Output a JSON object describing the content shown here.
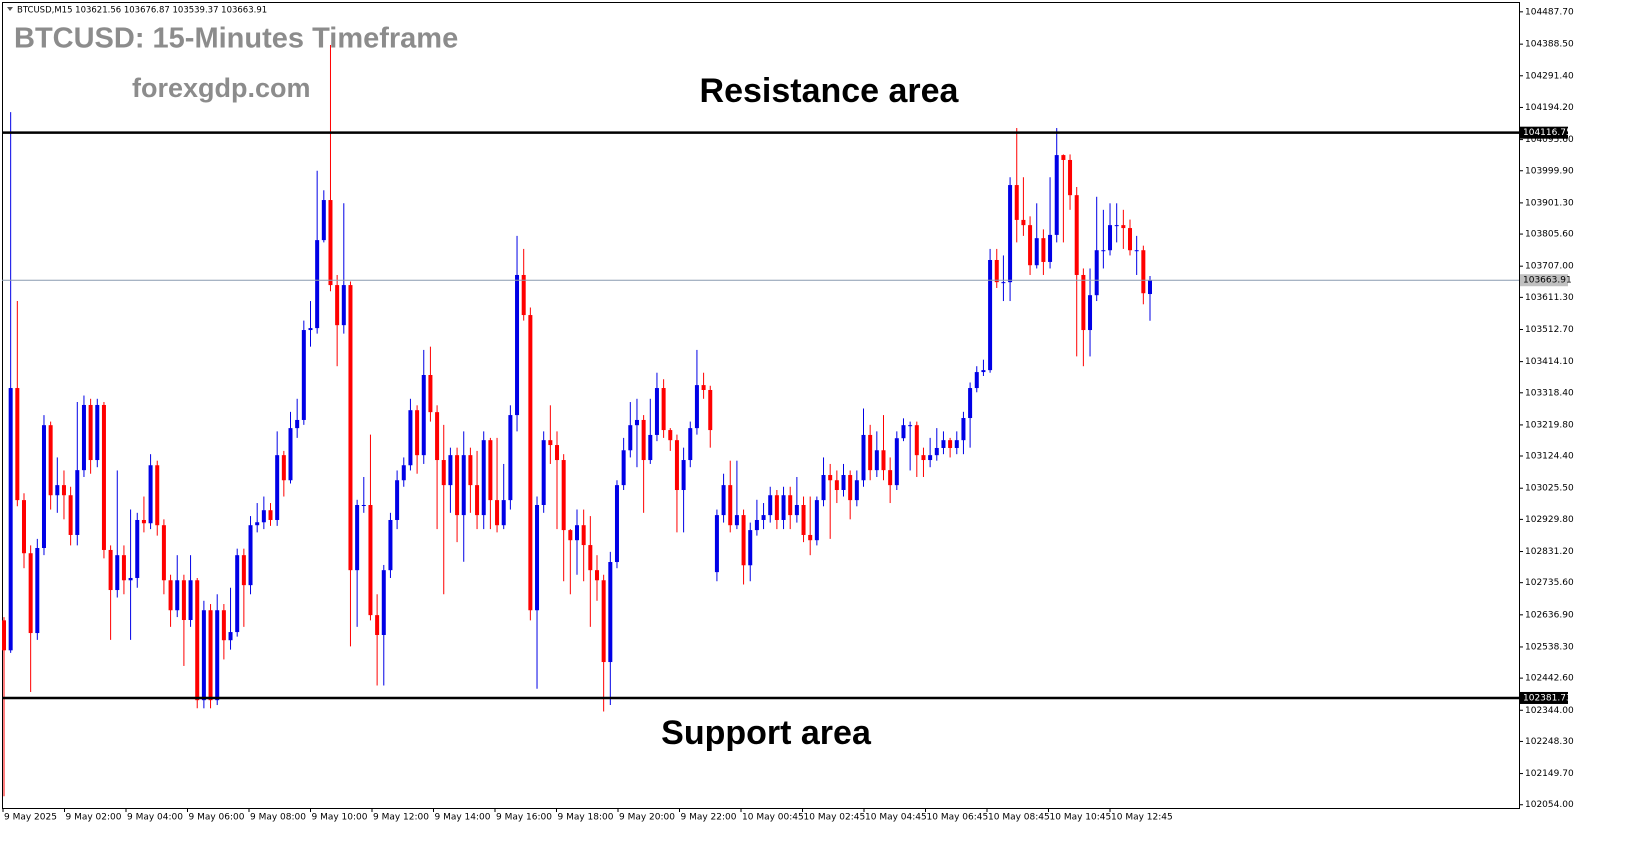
{
  "chart_data": {
    "type": "candlestick",
    "header": "BTCUSD,M15  103621.56 103676.87 103539.37 103663.91",
    "title": "BTCUSD: 15-Minutes Timeframe",
    "subtitle": "forexgdp.com",
    "up_color": "#0000e6",
    "down_color": "#ff0000",
    "ylim": [
      102044,
      104524
    ],
    "yticks": [
      {
        "value": 104487.7,
        "label": "104487.70"
      },
      {
        "value": 104388.5,
        "label": "104388.50"
      },
      {
        "value": 104291.4,
        "label": "104291.40"
      },
      {
        "value": 104194.2,
        "label": "104194.20"
      },
      {
        "value": 104095.6,
        "label": "104095.60"
      },
      {
        "value": 103999.9,
        "label": "103999.90"
      },
      {
        "value": 103901.3,
        "label": "103901.30"
      },
      {
        "value": 103805.6,
        "label": "103805.60"
      },
      {
        "value": 103707.0,
        "label": "103707.00"
      },
      {
        "value": 103611.3,
        "label": "103611.30"
      },
      {
        "value": 103512.7,
        "label": "103512.70"
      },
      {
        "value": 103414.1,
        "label": "103414.10"
      },
      {
        "value": 103318.4,
        "label": "103318.40"
      },
      {
        "value": 103219.8,
        "label": "103219.80"
      },
      {
        "value": 103124.4,
        "label": "103124.40"
      },
      {
        "value": 103025.5,
        "label": "103025.50"
      },
      {
        "value": 102929.8,
        "label": "102929.80"
      },
      {
        "value": 102831.2,
        "label": "102831.20"
      },
      {
        "value": 102735.6,
        "label": "102735.60"
      },
      {
        "value": 102636.9,
        "label": "102636.90"
      },
      {
        "value": 102538.3,
        "label": "102538.30"
      },
      {
        "value": 102442.6,
        "label": "102442.60"
      },
      {
        "value": 102344.0,
        "label": "102344.00"
      },
      {
        "value": 102248.3,
        "label": "102248.30"
      },
      {
        "value": 102149.7,
        "label": "102149.70"
      },
      {
        "value": 102054.0,
        "label": "102054.00"
      }
    ],
    "x_labels": [
      "9 May 2025",
      "9 May 02:00",
      "9 May 04:00",
      "9 May 06:00",
      "9 May 08:00",
      "9 May 10:00",
      "9 May 12:00",
      "9 May 14:00",
      "9 May 16:00",
      "9 May 18:00",
      "9 May 20:00",
      "9 May 22:00",
      "10 May 00:45",
      "10 May 02:45",
      "10 May 04:45",
      "10 May 06:45",
      "10 May 08:45",
      "10 May 10:45",
      "10 May 12:45"
    ],
    "resistance": {
      "name": "Resistance area",
      "value": 104116.75
    },
    "support": {
      "name": "Support area",
      "value": 102381.73
    },
    "last_price": 103663.91,
    "candles": {
      "open": [
        102620,
        102528,
        103333,
        102989,
        102826,
        102581,
        102842,
        103219,
        103004,
        103035,
        103004,
        102882,
        103081,
        103281,
        103112,
        103281,
        102836,
        102713,
        102820,
        102743,
        102750,
        102928,
        102918,
        103096,
        102912,
        102743,
        102651,
        102743,
        102621,
        102743,
        102375,
        102651,
        102375,
        102651,
        102559,
        102584,
        102820,
        102728,
        102912,
        102921,
        102958,
        102928,
        103127,
        103050,
        103210,
        103235,
        103511,
        103517,
        103787,
        103910,
        103649,
        103526,
        103649,
        102774,
        102974,
        102974,
        102636,
        102575,
        102774,
        102928,
        103050,
        103096,
        103265,
        103127,
        103373,
        103259,
        103112,
        103035,
        103127,
        102943,
        103127,
        103035,
        102943,
        103173,
        102989,
        102912,
        102989,
        103250,
        103680,
        103557,
        102651,
        102974,
        103173,
        103158,
        103112,
        102897,
        102866,
        102912,
        102851,
        102774,
        102743,
        102492,
        102799,
        103035,
        103142,
        103219,
        103235,
        103112,
        103189,
        103333,
        103204,
        103173,
        103020,
        103112,
        103210,
        103342,
        103327,
        102768,
        102943,
        103035,
        102912,
        102943,
        102789,
        102897,
        102928,
        102943,
        103004,
        102928,
        103004,
        102943,
        102974,
        102882,
        102866,
        102989,
        103066,
        103050,
        103020,
        103066,
        102989,
        103050,
        103189,
        103081,
        103142,
        103081,
        103035,
        103179,
        103219,
        103219,
        103127,
        103112,
        103127,
        103149,
        103173,
        103149,
        103173,
        103241,
        103333,
        103382,
        103388,
        103726,
        103658,
        103658,
        103956,
        103849,
        103833,
        103710,
        103793,
        103720,
        103803,
        104048,
        104033,
        103925,
        103680,
        103511,
        103618,
        103756,
        103756,
        103833,
        103833,
        103824,
        103756,
        103756,
        103621.56
      ],
      "high": [
        102630,
        104180,
        103600,
        103010,
        102850,
        102870,
        103250,
        103230,
        103120,
        103080,
        103030,
        103290,
        103310,
        103300,
        103300,
        103290,
        102850,
        103080,
        102850,
        102960,
        102950,
        103000,
        103130,
        103110,
        102930,
        102760,
        102820,
        102760,
        102820,
        102750,
        102680,
        102670,
        102700,
        102670,
        102720,
        102840,
        102840,
        102940,
        102980,
        103000,
        102980,
        103200,
        103140,
        103260,
        103300,
        103540,
        103600,
        104000,
        103940,
        104386,
        103680,
        103900,
        103660,
        102990,
        103060,
        103190,
        102700,
        102790,
        102950,
        103080,
        103120,
        103300,
        103280,
        103450,
        103460,
        103280,
        103220,
        103150,
        103150,
        103200,
        103150,
        103140,
        103200,
        103180,
        103180,
        103100,
        103280,
        103800,
        103760,
        103580,
        103000,
        103200,
        103280,
        103200,
        103130,
        102900,
        102960,
        102960,
        102940,
        102820,
        102760,
        102830,
        103050,
        103180,
        103290,
        103300,
        103250,
        103300,
        103380,
        103360,
        103210,
        103190,
        103150,
        103230,
        103450,
        103380,
        103340,
        102960,
        103070,
        103110,
        103110,
        102960,
        102920,
        102990,
        102980,
        103030,
        103020,
        103030,
        103030,
        103060,
        103000,
        103000,
        103000,
        103120,
        103100,
        103080,
        103100,
        103080,
        103080,
        103270,
        103220,
        103200,
        103250,
        103120,
        103200,
        103240,
        103230,
        103230,
        103150,
        103180,
        103210,
        103200,
        103180,
        103200,
        103260,
        103350,
        103400,
        103420,
        103760,
        103760,
        103740,
        103980,
        104131,
        103980,
        103860,
        103900,
        103820,
        103980,
        104131,
        104050,
        104050,
        103950,
        103700,
        103700,
        103920,
        103880,
        103900,
        103900,
        103880,
        103850,
        103800,
        103770,
        103676.87
      ],
      "low": [
        102080,
        102520,
        102970,
        102780,
        102400,
        102560,
        102820,
        102960,
        102950,
        102930,
        102850,
        102850,
        103060,
        103070,
        103090,
        102810,
        102560,
        102690,
        102700,
        102560,
        102720,
        102890,
        102900,
        102880,
        102700,
        102600,
        102630,
        102480,
        102600,
        102350,
        102350,
        102350,
        102360,
        102500,
        102530,
        102570,
        102600,
        102700,
        102890,
        102900,
        102910,
        102910,
        103000,
        103040,
        103180,
        103220,
        103460,
        103500,
        103780,
        103630,
        103400,
        103500,
        102540,
        102600,
        102950,
        102620,
        102420,
        102420,
        102750,
        102900,
        103030,
        103080,
        103070,
        103100,
        103230,
        102900,
        102700,
        102950,
        102860,
        102800,
        102950,
        102900,
        102900,
        102900,
        102890,
        102900,
        102960,
        103200,
        103540,
        102620,
        102410,
        102950,
        103100,
        102900,
        102740,
        102700,
        102760,
        102740,
        102600,
        102680,
        102340,
        102360,
        102780,
        103020,
        103120,
        103090,
        102950,
        103100,
        103170,
        103180,
        103140,
        102890,
        102890,
        103090,
        103190,
        103300,
        103150,
        102740,
        102920,
        102890,
        102900,
        102730,
        102740,
        102880,
        102900,
        102920,
        102900,
        102900,
        102900,
        102920,
        102860,
        102820,
        102850,
        102970,
        102870,
        102980,
        103000,
        102930,
        102970,
        103030,
        103050,
        103060,
        103050,
        102980,
        103020,
        103170,
        103080,
        103060,
        103060,
        103090,
        103110,
        103130,
        103120,
        103130,
        103130,
        103150,
        103320,
        103370,
        103380,
        103640,
        103600,
        103600,
        103780,
        103800,
        103680,
        103700,
        103680,
        103700,
        103780,
        103780,
        103880,
        103430,
        103400,
        103430,
        103600,
        103700,
        103740,
        103780,
        103760,
        103740,
        103680,
        103590,
        103539.37
      ],
      "close": [
        102528,
        103333,
        102989,
        102826,
        102581,
        102842,
        103219,
        103004,
        103035,
        103004,
        102882,
        103081,
        103281,
        103112,
        103281,
        102836,
        102713,
        102820,
        102743,
        102750,
        102928,
        102918,
        103096,
        102912,
        102743,
        102651,
        102743,
        102621,
        102743,
        102375,
        102651,
        102375,
        102651,
        102559,
        102584,
        102820,
        102728,
        102912,
        102921,
        102958,
        102928,
        103127,
        103050,
        103210,
        103235,
        103511,
        103517,
        103787,
        103910,
        103649,
        103526,
        103649,
        102774,
        102974,
        102974,
        102636,
        102575,
        102774,
        102928,
        103050,
        103096,
        103265,
        103127,
        103373,
        103259,
        103112,
        103035,
        103127,
        102943,
        103127,
        103035,
        102943,
        103173,
        102989,
        102912,
        102989,
        103250,
        103680,
        103557,
        102651,
        102974,
        103173,
        103158,
        103112,
        102897,
        102866,
        102912,
        102851,
        102774,
        102743,
        102492,
        102799,
        103035,
        103142,
        103219,
        103235,
        103112,
        103189,
        103333,
        103204,
        103173,
        103020,
        103112,
        103210,
        103342,
        103327,
        103204,
        102943,
        103035,
        102912,
        102943,
        102789,
        102897,
        102928,
        102943,
        103004,
        102928,
        103004,
        102943,
        102974,
        102882,
        102866,
        102989,
        103066,
        103050,
        103020,
        103066,
        102989,
        103050,
        103189,
        103081,
        103142,
        103081,
        103035,
        103179,
        103219,
        103219,
        103127,
        103112,
        103127,
        103149,
        103173,
        103149,
        103173,
        103241,
        103333,
        103382,
        103388,
        103726,
        103658,
        103658,
        103956,
        103849,
        103833,
        103710,
        103793,
        103720,
        103803,
        104048,
        104033,
        103925,
        103680,
        103511,
        103618,
        103756,
        103756,
        103833,
        103833,
        103824,
        103756,
        103756,
        103624,
        103663.91
      ]
    }
  }
}
